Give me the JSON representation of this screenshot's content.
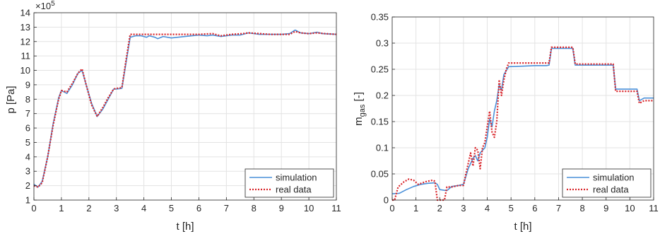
{
  "chart_data": [
    {
      "type": "line",
      "xlabel": "t [h]",
      "ylabel": "p [Pa]",
      "exponent_label": "×10",
      "exponent_power": "5",
      "xlim": [
        0,
        11
      ],
      "ylim": [
        1,
        14
      ],
      "xticks": [
        0,
        1,
        2,
        3,
        4,
        5,
        6,
        7,
        8,
        9,
        10,
        11
      ],
      "yticks": [
        1,
        2,
        3,
        4,
        5,
        6,
        7,
        8,
        9,
        10,
        11,
        12,
        13,
        14
      ],
      "grid": true,
      "legend_position": "bottom-right",
      "series": [
        {
          "name": "simulation",
          "color": "#4a90d9",
          "style": "solid",
          "x": [
            0,
            0.15,
            0.3,
            0.5,
            0.7,
            0.9,
            1.0,
            1.2,
            1.4,
            1.6,
            1.75,
            1.9,
            2.1,
            2.3,
            2.5,
            2.7,
            2.9,
            3.0,
            3.2,
            3.35,
            3.5,
            3.7,
            3.9,
            4.1,
            4.2,
            4.4,
            4.5,
            4.7,
            5.0,
            5.5,
            6.0,
            6.3,
            6.5,
            6.8,
            7.2,
            7.5,
            7.8,
            8.2,
            8.6,
            9.0,
            9.3,
            9.5,
            9.7,
            10.0,
            10.3,
            10.5,
            11.0
          ],
          "y": [
            2.1,
            1.9,
            2.3,
            4.0,
            6.3,
            8.1,
            8.6,
            8.4,
            9.0,
            9.8,
            10.0,
            9.0,
            7.7,
            6.8,
            7.3,
            8.0,
            8.7,
            8.7,
            8.75,
            10.5,
            12.3,
            12.4,
            12.4,
            12.3,
            12.4,
            12.3,
            12.2,
            12.35,
            12.25,
            12.35,
            12.45,
            12.4,
            12.45,
            12.35,
            12.45,
            12.45,
            12.6,
            12.5,
            12.5,
            12.5,
            12.55,
            12.8,
            12.6,
            12.55,
            12.65,
            12.55,
            12.5
          ]
        },
        {
          "name": "real data",
          "color": "#d9252a",
          "style": "dotted",
          "x": [
            0,
            0.15,
            0.3,
            0.5,
            0.7,
            0.9,
            1.0,
            1.2,
            1.4,
            1.6,
            1.75,
            1.9,
            2.1,
            2.3,
            2.5,
            2.7,
            2.9,
            3.0,
            3.2,
            3.35,
            3.5,
            3.7,
            4.0,
            4.5,
            5.0,
            5.5,
            6.0,
            6.5,
            6.8,
            7.2,
            7.6,
            7.8,
            8.2,
            8.6,
            9.0,
            9.3,
            9.5,
            9.7,
            10.0,
            10.3,
            10.6,
            11.0
          ],
          "y": [
            2.0,
            1.9,
            2.2,
            4.0,
            6.2,
            8.0,
            8.6,
            8.5,
            9.1,
            9.8,
            10.1,
            9.0,
            7.6,
            6.8,
            7.4,
            8.1,
            8.7,
            8.75,
            8.8,
            10.7,
            12.5,
            12.5,
            12.5,
            12.5,
            12.5,
            12.5,
            12.5,
            12.55,
            12.4,
            12.5,
            12.55,
            12.6,
            12.55,
            12.5,
            12.5,
            12.5,
            12.7,
            12.6,
            12.55,
            12.6,
            12.55,
            12.5
          ]
        }
      ]
    },
    {
      "type": "line",
      "xlabel": "t [h]",
      "ylabel": "m",
      "ylabel_subscript": "gas",
      "ylabel_suffix": " [-]",
      "xlim": [
        0,
        11
      ],
      "ylim": [
        0,
        0.35
      ],
      "xticks": [
        0,
        1,
        2,
        3,
        4,
        5,
        6,
        7,
        8,
        9,
        10,
        11
      ],
      "yticks": [
        0,
        0.05,
        0.1,
        0.15,
        0.2,
        0.25,
        0.3,
        0.35
      ],
      "ytick_labels": [
        "0",
        "0.05",
        "0.1",
        "0.15",
        "0.2",
        "0.25",
        "0.3",
        "0.35"
      ],
      "grid": true,
      "legend_position": "bottom-right",
      "series": [
        {
          "name": "simulation",
          "color": "#4a90d9",
          "style": "solid",
          "x": [
            0,
            0.3,
            0.6,
            0.9,
            1.2,
            1.5,
            1.8,
            1.9,
            2.0,
            2.3,
            2.5,
            2.8,
            3.0,
            3.2,
            3.4,
            3.5,
            3.6,
            3.7,
            3.8,
            3.9,
            4.0,
            4.1,
            4.2,
            4.3,
            4.4,
            4.5,
            4.6,
            4.7,
            4.9,
            5.5,
            6.0,
            6.5,
            6.6,
            6.7,
            7.0,
            7.5,
            7.6,
            7.7,
            8.0,
            8.5,
            9.0,
            9.3,
            9.4,
            9.6,
            10.0,
            10.3,
            10.4,
            10.6,
            11.0
          ],
          "y": [
            0.012,
            0.013,
            0.02,
            0.026,
            0.03,
            0.032,
            0.033,
            0.03,
            0.02,
            0.018,
            0.026,
            0.028,
            0.03,
            0.06,
            0.08,
            0.085,
            0.075,
            0.09,
            0.095,
            0.1,
            0.12,
            0.155,
            0.14,
            0.17,
            0.19,
            0.22,
            0.21,
            0.24,
            0.255,
            0.256,
            0.257,
            0.257,
            0.258,
            0.29,
            0.29,
            0.29,
            0.29,
            0.258,
            0.258,
            0.258,
            0.258,
            0.258,
            0.212,
            0.212,
            0.212,
            0.212,
            0.19,
            0.195,
            0.195
          ]
        },
        {
          "name": "real data",
          "color": "#d9252a",
          "style": "dotted",
          "x": [
            0,
            0.1,
            0.25,
            0.5,
            0.7,
            0.9,
            1.1,
            1.4,
            1.7,
            1.8,
            1.9,
            2.0,
            2.2,
            2.3,
            2.5,
            2.8,
            3.0,
            3.1,
            3.2,
            3.3,
            3.4,
            3.5,
            3.6,
            3.7,
            3.8,
            3.9,
            4.0,
            4.1,
            4.2,
            4.3,
            4.4,
            4.5,
            4.6,
            4.7,
            4.8,
            4.9,
            5.5,
            6.0,
            6.5,
            6.6,
            6.7,
            7.0,
            7.5,
            7.6,
            7.7,
            8.0,
            8.5,
            9.0,
            9.3,
            9.4,
            9.6,
            10.0,
            10.3,
            10.4,
            10.6,
            11.0
          ],
          "y": [
            0.0,
            0.0,
            0.025,
            0.035,
            0.04,
            0.038,
            0.03,
            0.035,
            0.038,
            0.036,
            0.0,
            0.0,
            0.0,
            0.025,
            0.025,
            0.028,
            0.028,
            0.05,
            0.07,
            0.09,
            0.065,
            0.1,
            0.095,
            0.06,
            0.1,
            0.11,
            0.14,
            0.17,
            0.13,
            0.12,
            0.15,
            0.23,
            0.2,
            0.23,
            0.25,
            0.262,
            0.262,
            0.262,
            0.262,
            0.262,
            0.292,
            0.292,
            0.292,
            0.292,
            0.26,
            0.26,
            0.26,
            0.26,
            0.26,
            0.208,
            0.208,
            0.208,
            0.208,
            0.185,
            0.19,
            0.19
          ]
        }
      ]
    }
  ]
}
